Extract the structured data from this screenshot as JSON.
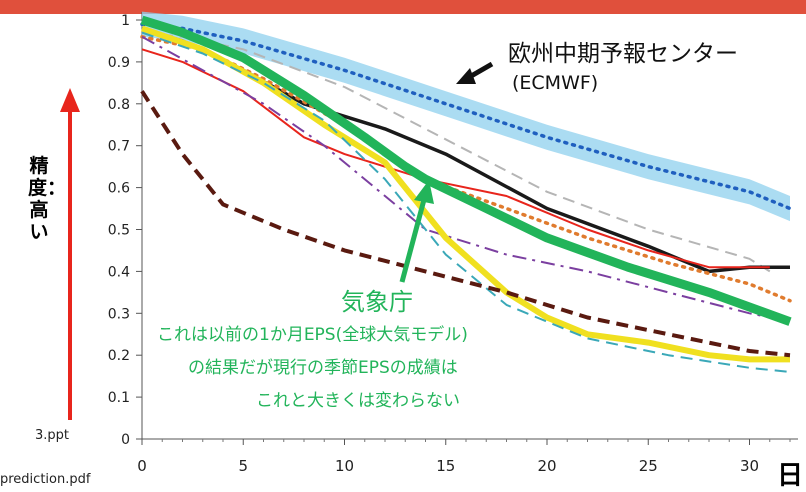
{
  "chart_data": {
    "type": "line",
    "xlim": [
      0,
      32
    ],
    "ylim": [
      0,
      1
    ],
    "xticks": [
      0,
      5,
      10,
      15,
      20,
      25,
      30
    ],
    "yticks": [
      0,
      0.1,
      0.2,
      0.3,
      0.4,
      0.5,
      0.6,
      0.7,
      0.8,
      0.9,
      1
    ],
    "x_unit_label": "日",
    "y_axis_note": "精度：高い",
    "series": [
      {
        "name": "欧州中期予報センター (ECMWF)",
        "color": "#1f5fbf",
        "band_color": "#8fd0ee",
        "style": "dotted",
        "x": [
          0,
          2,
          5,
          10,
          15,
          20,
          25,
          30,
          32
        ],
        "y": [
          0.99,
          0.98,
          0.95,
          0.88,
          0.8,
          0.72,
          0.65,
          0.59,
          0.55
        ]
      },
      {
        "color": "#b5b5b5",
        "style": "dashed",
        "x": [
          0,
          2,
          5,
          10,
          14,
          20,
          25,
          30,
          31
        ],
        "y": [
          0.97,
          0.96,
          0.93,
          0.84,
          0.74,
          0.59,
          0.5,
          0.43,
          0.4
        ]
      },
      {
        "color": "#1a1a1a",
        "style": "solid",
        "x": [
          0,
          2,
          5,
          8,
          12,
          15,
          20,
          25,
          28,
          30,
          32
        ],
        "y": [
          0.98,
          0.95,
          0.88,
          0.8,
          0.74,
          0.68,
          0.55,
          0.46,
          0.4,
          0.41,
          0.41
        ]
      },
      {
        "color": "#e8251c",
        "style": "solid",
        "x": [
          0,
          2,
          5,
          8,
          10,
          14,
          18,
          22,
          25,
          28,
          30,
          31
        ],
        "y": [
          0.93,
          0.9,
          0.83,
          0.72,
          0.68,
          0.62,
          0.58,
          0.5,
          0.45,
          0.41,
          0.41,
          0.41
        ]
      },
      {
        "color": "#e07b2e",
        "style": "dotted",
        "x": [
          0,
          3,
          6,
          10,
          14,
          18,
          22,
          26,
          30,
          32
        ],
        "y": [
          0.96,
          0.93,
          0.86,
          0.75,
          0.62,
          0.55,
          0.48,
          0.42,
          0.37,
          0.33
        ]
      },
      {
        "color": "#7b3fa0",
        "style": "dashdot",
        "x": [
          0,
          3,
          6,
          9,
          12,
          14,
          18,
          22,
          26,
          30,
          32
        ],
        "y": [
          0.96,
          0.88,
          0.8,
          0.7,
          0.58,
          0.5,
          0.44,
          0.4,
          0.35,
          0.3,
          0.28
        ]
      },
      {
        "color": "#f0e020",
        "style": "solid",
        "x": [
          0,
          3,
          6,
          9,
          12,
          15,
          18,
          20,
          22,
          25,
          28,
          30,
          32
        ],
        "y": [
          0.98,
          0.93,
          0.85,
          0.75,
          0.66,
          0.48,
          0.35,
          0.29,
          0.25,
          0.23,
          0.2,
          0.19,
          0.19
        ]
      },
      {
        "color": "#3aa8b8",
        "style": "dashed",
        "x": [
          0,
          3,
          6,
          9,
          12,
          15,
          18,
          22,
          26,
          30,
          32
        ],
        "y": [
          0.97,
          0.92,
          0.85,
          0.76,
          0.62,
          0.44,
          0.32,
          0.24,
          0.2,
          0.17,
          0.16
        ]
      },
      {
        "color": "#5a1a10",
        "style": "dashed",
        "x": [
          0,
          2,
          4,
          7,
          10,
          14,
          18,
          22,
          26,
          30,
          32
        ],
        "y": [
          0.83,
          0.68,
          0.56,
          0.5,
          0.45,
          0.4,
          0.35,
          0.29,
          0.25,
          0.21,
          0.2
        ]
      },
      {
        "name": "気象庁",
        "color": "#22b45a",
        "style": "solid",
        "emphasis": true,
        "x": [
          0,
          2,
          5,
          8,
          11,
          13,
          14,
          17,
          20,
          24,
          28,
          32
        ],
        "y": [
          1.0,
          0.97,
          0.91,
          0.82,
          0.72,
          0.65,
          0.62,
          0.55,
          0.48,
          0.41,
          0.35,
          0.28
        ]
      }
    ],
    "annotations": {
      "ecmwf_label": "欧州中期予報センター",
      "ecmwf_sub": "(ECMWF)",
      "jma_label": "気象庁",
      "jma_note_1": "これは以前の1か月EPS(全球大気モデル)",
      "jma_note_2": "の結果だが現行の季節EPSの成績は",
      "jma_note_3": "これと大きくは変わらない"
    }
  },
  "page": {
    "source_ppt": "3.ppt",
    "source_pdf": "prediction.pdf"
  },
  "colors": {
    "banner": "#e0503c",
    "accent_green": "#22b45a",
    "arrow_red": "#e8251c"
  }
}
